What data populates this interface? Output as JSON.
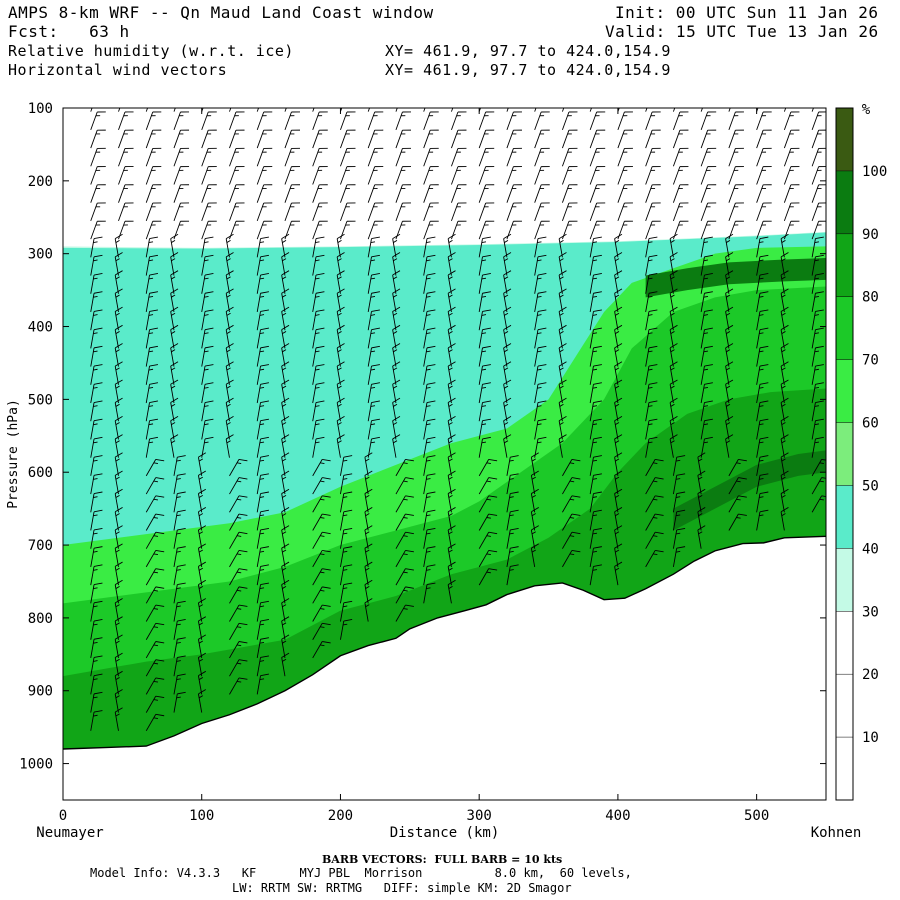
{
  "header": {
    "title": "AMPS 8-km WRF -- Qn Maud Land Coast window",
    "forecast": "Fcst:   63 h",
    "field1": "Relative humidity (w.r.t. ice)",
    "field2": "Horizontal wind vectors",
    "init": "Init: 00 UTC Sun 11 Jan 26",
    "valid": "Valid: 15 UTC Tue 13 Jan 26",
    "xy1": "XY= 461.9, 97.7 to 424.0,154.9",
    "xy2": "XY= 461.9, 97.7 to 424.0,154.9"
  },
  "footer": {
    "barb_note": "BARB VECTORS:  FULL BARB = 10 kts",
    "model_info": "Model Info: V4.3.3   KF      MYJ PBL  Morrison          8.0 km,  60 levels,",
    "model_info2": "LW: RRTM SW: RRTMG   DIFF: simple KM: 2D Smagor"
  },
  "chart_data": {
    "type": "heatmap",
    "title": "Relative humidity (w.r.t. ice) and horizontal wind vectors, Neumayer to Kohnen cross-section",
    "xlabel": "Distance (km)",
    "ylabel": "Pressure (hPa)",
    "xlim": [
      0,
      550
    ],
    "ylim": [
      1050,
      100
    ],
    "x_ticks": [
      0,
      100,
      200,
      300,
      400,
      500
    ],
    "y_ticks": [
      100,
      200,
      300,
      400,
      500,
      600,
      700,
      800,
      900,
      1000
    ],
    "x_start_label": "Neumayer",
    "x_end_label": "Kohnen",
    "colorbar": {
      "unit": "%",
      "levels": [
        10,
        20,
        30,
        40,
        50,
        60,
        70,
        80,
        90,
        100
      ],
      "colors": [
        "#ffffff",
        "#ffffff",
        "#ffffff",
        "#c4fae6",
        "#5aebca",
        "#7ced7c",
        "#3aec44",
        "#1cc928",
        "#11a517",
        "#0b7c11",
        "#3a5a12"
      ]
    },
    "terrain": [
      [
        0,
        980
      ],
      [
        30,
        978
      ],
      [
        60,
        976
      ],
      [
        80,
        962
      ],
      [
        100,
        945
      ],
      [
        120,
        933
      ],
      [
        140,
        918
      ],
      [
        160,
        900
      ],
      [
        180,
        878
      ],
      [
        200,
        852
      ],
      [
        220,
        838
      ],
      [
        240,
        828
      ],
      [
        250,
        815
      ],
      [
        270,
        800
      ],
      [
        290,
        790
      ],
      [
        305,
        782
      ],
      [
        320,
        768
      ],
      [
        340,
        756
      ],
      [
        360,
        752
      ],
      [
        375,
        762
      ],
      [
        390,
        775
      ],
      [
        405,
        773
      ],
      [
        420,
        760
      ],
      [
        440,
        740
      ],
      [
        455,
        722
      ],
      [
        470,
        708
      ],
      [
        490,
        698
      ],
      [
        505,
        697
      ],
      [
        520,
        690
      ],
      [
        550,
        688
      ]
    ],
    "moist_top": [
      [
        0,
        290
      ],
      [
        100,
        292
      ],
      [
        200,
        290
      ],
      [
        300,
        287
      ],
      [
        400,
        283
      ],
      [
        500,
        275
      ],
      [
        550,
        270
      ]
    ],
    "contours": [
      {
        "level": 50,
        "pts": [
          [
            0,
            300
          ],
          [
            60,
            300
          ],
          [
            100,
            296
          ],
          [
            200,
            294
          ],
          [
            300,
            290
          ],
          [
            400,
            286
          ],
          [
            500,
            278
          ],
          [
            550,
            272
          ]
        ]
      },
      {
        "level": 40,
        "pts": [
          [
            0,
            292
          ],
          [
            100,
            293
          ],
          [
            200,
            291
          ],
          [
            300,
            288
          ],
          [
            400,
            284
          ],
          [
            500,
            276
          ],
          [
            550,
            271
          ]
        ]
      },
      {
        "level": 60,
        "pts": [
          [
            0,
            700
          ],
          [
            40,
            690
          ],
          [
            80,
            680
          ],
          [
            120,
            670
          ],
          [
            160,
            655
          ],
          [
            200,
            620
          ],
          [
            240,
            590
          ],
          [
            280,
            560
          ],
          [
            320,
            540
          ],
          [
            350,
            500
          ],
          [
            370,
            440
          ],
          [
            390,
            380
          ],
          [
            410,
            340
          ],
          [
            440,
            320
          ],
          [
            470,
            300
          ],
          [
            500,
            292
          ],
          [
            550,
            290
          ]
        ]
      },
      {
        "level": 70,
        "pts": [
          [
            0,
            780
          ],
          [
            40,
            770
          ],
          [
            80,
            760
          ],
          [
            120,
            750
          ],
          [
            160,
            730
          ],
          [
            200,
            700
          ],
          [
            240,
            680
          ],
          [
            280,
            660
          ],
          [
            300,
            640
          ],
          [
            330,
            600
          ],
          [
            360,
            560
          ],
          [
            390,
            500
          ],
          [
            410,
            430
          ],
          [
            440,
            380
          ],
          [
            470,
            360
          ],
          [
            500,
            350
          ],
          [
            550,
            345
          ]
        ]
      },
      {
        "level": 80,
        "pts": [
          [
            0,
            880
          ],
          [
            60,
            860
          ],
          [
            100,
            850
          ],
          [
            160,
            830
          ],
          [
            200,
            790
          ],
          [
            240,
            770
          ],
          [
            280,
            740
          ],
          [
            320,
            720
          ],
          [
            350,
            690
          ],
          [
            380,
            650
          ],
          [
            400,
            600
          ],
          [
            420,
            560
          ],
          [
            450,
            520
          ],
          [
            480,
            500
          ],
          [
            510,
            490
          ],
          [
            550,
            485
          ]
        ]
      },
      {
        "level": 90,
        "pts": [
          [
            420,
            330
          ],
          [
            450,
            320
          ],
          [
            480,
            312
          ],
          [
            520,
            308
          ],
          [
            550,
            306
          ]
        ]
      },
      {
        "level": 90,
        "pts": [
          [
            440,
            650
          ],
          [
            470,
            620
          ],
          [
            500,
            590
          ],
          [
            530,
            575
          ],
          [
            550,
            570
          ]
        ]
      }
    ],
    "barb_columns_km": [
      20,
      40,
      60,
      80,
      100,
      120,
      140,
      160,
      180,
      200,
      220,
      240,
      260,
      280,
      300,
      320,
      340,
      360,
      380,
      400,
      420,
      440,
      460,
      480,
      500,
      520,
      540
    ],
    "barb_spacing_hpa": 25,
    "barb_speed_kts": 15
  }
}
